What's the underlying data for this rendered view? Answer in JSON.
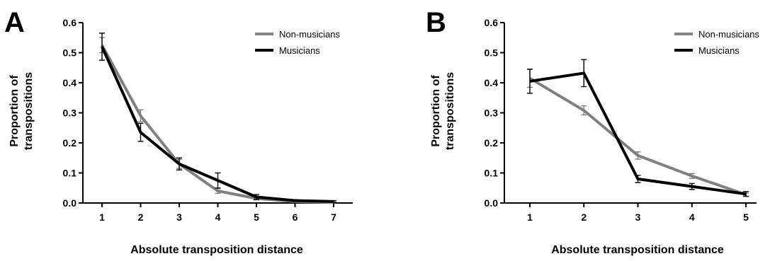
{
  "colors": {
    "non_musicians": "#808080",
    "musicians": "#000000"
  },
  "chart_data": [
    {
      "panel": "A",
      "type": "line",
      "x": [
        1,
        2,
        3,
        4,
        5,
        6,
        7
      ],
      "xlabel": "Absolute transposition distance",
      "ylabel": "Proportion of transpositions",
      "ylabel_lines": [
        "Proportion of",
        "transpositions"
      ],
      "ylim": [
        0,
        0.6
      ],
      "yticks": [
        "0.0",
        "0.1",
        "0.2",
        "0.3",
        "0.4",
        "0.5",
        "0.6"
      ],
      "xticks": [
        "1",
        "2",
        "3",
        "4",
        "5",
        "6",
        "7"
      ],
      "legend_position": "top-right",
      "grid": false,
      "series": [
        {
          "name": "Non-musicians",
          "color": "#808080",
          "values": [
            0.525,
            0.29,
            0.13,
            0.04,
            0.015,
            0.005,
            0.002
          ],
          "errors": [
            0.025,
            0.02,
            0.015,
            0.008,
            0.005,
            0.002,
            0.001
          ]
        },
        {
          "name": "Musicians",
          "color": "#000000",
          "values": [
            0.52,
            0.235,
            0.13,
            0.075,
            0.02,
            0.008,
            0.005
          ],
          "errors": [
            0.045,
            0.03,
            0.02,
            0.025,
            0.008,
            0.003,
            0.003
          ]
        }
      ]
    },
    {
      "panel": "B",
      "type": "line",
      "x": [
        1,
        2,
        3,
        4,
        5
      ],
      "xlabel": "Absolute transposition distance",
      "ylabel": "Proportion of transpositions",
      "ylabel_lines": [
        "Proportion of",
        "transpositions"
      ],
      "ylim": [
        0,
        0.6
      ],
      "yticks": [
        "0.0",
        "0.1",
        "0.2",
        "0.3",
        "0.4",
        "0.5",
        "0.6"
      ],
      "xticks": [
        "1",
        "2",
        "3",
        "4",
        "5"
      ],
      "legend_position": "top-right",
      "grid": false,
      "series": [
        {
          "name": "Non-musicians",
          "color": "#808080",
          "values": [
            0.415,
            0.308,
            0.158,
            0.09,
            0.028
          ],
          "errors": [
            0.03,
            0.015,
            0.012,
            0.008,
            0.005
          ]
        },
        {
          "name": "Musicians",
          "color": "#000000",
          "values": [
            0.405,
            0.432,
            0.08,
            0.055,
            0.03
          ],
          "errors": [
            0.04,
            0.045,
            0.012,
            0.01,
            0.008
          ]
        }
      ]
    }
  ]
}
